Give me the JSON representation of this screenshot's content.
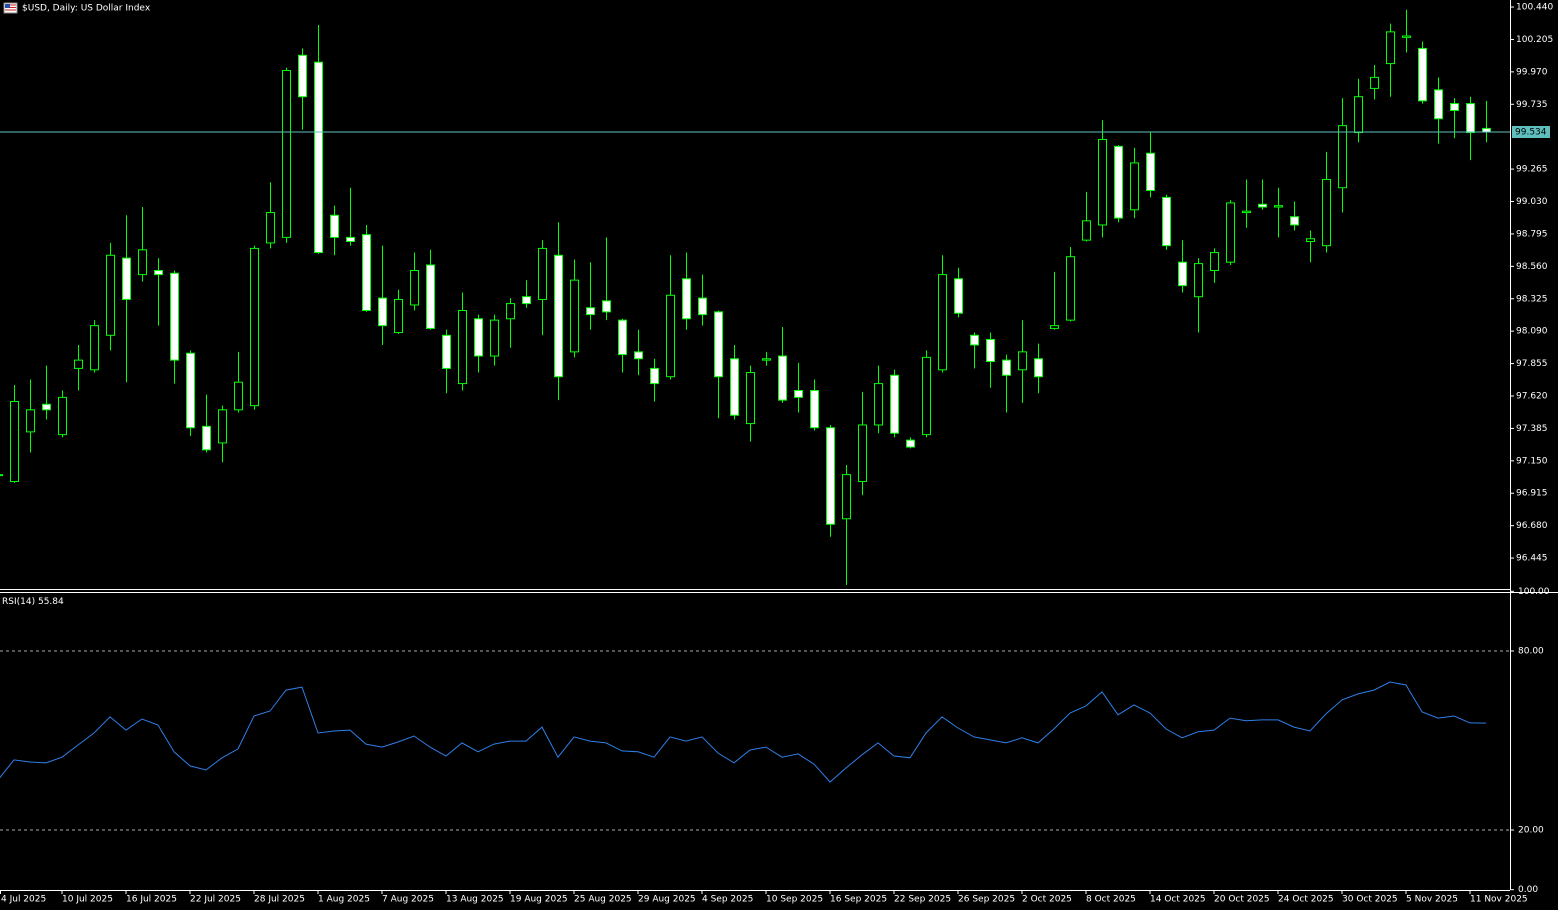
{
  "chart_data": [
    {
      "type": "candlestick",
      "title": "$USD, Daily:  US Dollar Index",
      "categories": [
        "4 Jul 2025",
        null,
        null,
        null,
        "10 Jul 2025",
        null,
        null,
        null,
        "16 Jul 2025",
        null,
        null,
        null,
        "22 Jul 2025",
        null,
        null,
        null,
        "28 Jul 2025",
        null,
        null,
        null,
        "1 Aug 2025",
        null,
        null,
        null,
        "7 Aug 2025",
        null,
        null,
        null,
        "13 Aug 2025",
        null,
        null,
        null,
        "19 Aug 2025",
        null,
        null,
        null,
        "25 Aug 2025",
        null,
        null,
        null,
        "29 Aug 2025",
        null,
        null,
        null,
        "4 Sep 2025",
        null,
        null,
        null,
        "10 Sep 2025",
        null,
        null,
        null,
        "16 Sep 2025",
        null,
        null,
        null,
        "22 Sep 2025",
        null,
        null,
        null,
        "26 Sep 2025",
        null,
        null,
        null,
        "2 Oct 2025",
        null,
        null,
        null,
        "8 Oct 2025",
        null,
        null,
        null,
        "14 Oct 2025",
        null,
        null,
        null,
        "20 Oct 2025",
        null,
        null,
        null,
        "24 Oct 2025",
        null,
        null,
        null,
        "30 Oct 2025",
        null,
        null,
        null,
        "5 Nov 2025",
        null,
        null,
        null,
        "11 Nov 2025",
        null
      ],
      "open": [
        97.05,
        97.0,
        97.36,
        97.56,
        97.34,
        97.82,
        97.81,
        98.06,
        98.62,
        98.5,
        98.53,
        98.51,
        97.93,
        97.4,
        97.28,
        97.52,
        97.55,
        98.73,
        98.77,
        100.09,
        100.04,
        98.93,
        98.77,
        98.79,
        98.33,
        98.08,
        98.28,
        98.57,
        98.06,
        97.71,
        98.18,
        97.91,
        98.18,
        98.34,
        98.32,
        98.64,
        97.94,
        98.26,
        98.31,
        98.17,
        97.94,
        97.82,
        97.76,
        98.47,
        98.33,
        98.23,
        97.89,
        97.42,
        97.88,
        97.91,
        97.66,
        97.66,
        97.39,
        96.73,
        97.0,
        97.41,
        97.77,
        97.3,
        97.34,
        97.81,
        98.47,
        98.06,
        98.03,
        97.88,
        97.81,
        97.89,
        98.11,
        98.17,
        98.75,
        98.86,
        99.43,
        98.97,
        99.38,
        99.06,
        98.59,
        98.34,
        98.53,
        98.59,
        98.95,
        99.01,
        98.99,
        98.92,
        98.74,
        98.71,
        99.13,
        99.53,
        99.85,
        100.03,
        100.22,
        100.14,
        99.84,
        99.74,
        99.74,
        99.56
      ],
      "high": [
        97.07,
        97.7,
        97.74,
        97.84,
        97.66,
        97.99,
        98.17,
        98.73,
        98.93,
        98.99,
        98.62,
        98.53,
        97.95,
        97.63,
        97.55,
        97.94,
        98.71,
        99.17,
        100.0,
        100.14,
        100.31,
        99.0,
        99.13,
        98.86,
        98.71,
        98.39,
        98.66,
        98.68,
        98.1,
        98.37,
        98.21,
        98.21,
        98.33,
        98.46,
        98.75,
        98.88,
        98.61,
        98.59,
        98.77,
        98.18,
        98.1,
        97.89,
        98.64,
        98.66,
        98.5,
        98.24,
        97.99,
        97.84,
        97.94,
        98.12,
        97.86,
        97.74,
        97.41,
        97.12,
        97.65,
        97.84,
        97.81,
        97.32,
        97.95,
        98.64,
        98.55,
        98.08,
        98.08,
        97.92,
        98.17,
        98.0,
        98.52,
        98.7,
        99.1,
        99.62,
        99.44,
        99.42,
        99.53,
        99.08,
        98.75,
        98.62,
        98.69,
        99.04,
        99.19,
        99.19,
        99.13,
        99.03,
        98.82,
        99.39,
        99.78,
        99.92,
        100.02,
        100.32,
        100.42,
        100.19,
        99.93,
        99.78,
        99.79,
        99.76
      ],
      "low": [
        97.03,
        96.99,
        97.21,
        97.45,
        97.32,
        97.66,
        97.79,
        97.95,
        97.72,
        98.45,
        98.13,
        97.71,
        97.33,
        97.21,
        97.14,
        97.5,
        97.52,
        98.69,
        98.73,
        99.55,
        98.65,
        98.64,
        98.71,
        98.23,
        97.99,
        98.07,
        98.24,
        98.1,
        97.64,
        97.66,
        97.79,
        97.84,
        97.97,
        98.26,
        98.06,
        97.59,
        97.9,
        98.1,
        98.17,
        97.79,
        97.77,
        97.58,
        97.74,
        98.1,
        98.13,
        97.46,
        97.45,
        97.29,
        97.84,
        97.57,
        97.5,
        97.37,
        96.6,
        96.25,
        96.9,
        97.35,
        97.32,
        97.24,
        97.32,
        97.79,
        98.19,
        97.82,
        97.68,
        97.5,
        97.57,
        97.64,
        98.1,
        98.16,
        98.74,
        98.77,
        98.88,
        98.91,
        99.06,
        98.68,
        98.37,
        98.08,
        98.44,
        98.57,
        98.84,
        98.97,
        98.77,
        98.82,
        98.59,
        98.66,
        98.95,
        99.46,
        99.77,
        99.79,
        100.11,
        99.74,
        99.45,
        99.49,
        99.33,
        99.46
      ],
      "close": [
        97.05,
        97.58,
        97.52,
        97.52,
        97.61,
        97.88,
        98.13,
        98.64,
        98.32,
        98.68,
        98.5,
        97.88,
        97.39,
        97.23,
        97.52,
        97.72,
        98.69,
        98.95,
        99.98,
        99.79,
        98.66,
        98.77,
        98.74,
        98.24,
        98.13,
        98.32,
        98.53,
        98.11,
        97.82,
        98.24,
        97.91,
        98.17,
        98.29,
        98.29,
        98.69,
        97.76,
        98.46,
        98.21,
        98.23,
        97.92,
        97.89,
        97.71,
        98.35,
        98.18,
        98.21,
        97.76,
        97.48,
        97.79,
        97.89,
        97.59,
        97.61,
        97.39,
        96.69,
        97.05,
        97.41,
        97.71,
        97.35,
        97.25,
        97.9,
        98.5,
        98.22,
        97.99,
        97.87,
        97.77,
        97.94,
        97.76,
        98.13,
        98.63,
        98.89,
        99.48,
        98.91,
        99.31,
        99.11,
        98.71,
        98.42,
        98.58,
        98.66,
        99.02,
        98.96,
        98.99,
        99.0,
        98.86,
        98.76,
        99.19,
        99.58,
        99.79,
        99.93,
        100.26,
        100.23,
        99.76,
        99.63,
        99.69,
        99.53,
        99.534
      ],
      "up_color": "#000000",
      "down_color": "#ffffff",
      "wick_color": "#00ff00",
      "price_line_color": "#5fbfbf",
      "ylim": [
        96.228,
        100.491
      ],
      "yticks": [
        {
          "value": 100.44,
          "label": "100.440"
        },
        {
          "value": 100.205,
          "label": "100.205"
        },
        {
          "value": 99.97,
          "label": "99.970"
        },
        {
          "value": 99.735,
          "label": "99.735"
        },
        {
          "value": 99.265,
          "label": "99.265"
        },
        {
          "value": 99.03,
          "label": "99.030"
        },
        {
          "value": 98.795,
          "label": "98.795"
        },
        {
          "value": 98.56,
          "label": "98.560"
        },
        {
          "value": 98.325,
          "label": "98.325"
        },
        {
          "value": 98.09,
          "label": "98.090"
        },
        {
          "value": 97.855,
          "label": "97.855"
        },
        {
          "value": 97.62,
          "label": "97.620"
        },
        {
          "value": 97.385,
          "label": "97.385"
        },
        {
          "value": 97.15,
          "label": "97.150"
        },
        {
          "value": 96.915,
          "label": "96.915"
        },
        {
          "value": 96.68,
          "label": "96.680"
        },
        {
          "value": 96.445,
          "label": "96.445"
        }
      ]
    },
    {
      "type": "line",
      "title": "RSI(14)",
      "series": [
        {
          "name": "RSI(14)",
          "color": "#2f7fe8",
          "values": [
            36.8,
            43.5,
            42.8,
            42.5,
            44.4,
            48.5,
            52.5,
            57.9,
            53.5,
            57.2,
            55.2,
            46.2,
            41.5,
            40.1,
            44.2,
            47.2,
            58.2,
            59.9,
            66.9,
            67.9,
            52.5,
            53.2,
            53.5,
            48.8,
            47.8,
            49.5,
            51.5,
            47.8,
            44.8,
            49.2,
            46.2,
            48.8,
            49.8,
            49.8,
            54.5,
            44.4,
            51.2,
            49.8,
            49.2,
            46.5,
            46.2,
            44.4,
            51.2,
            49.8,
            51.2,
            45.8,
            42.5,
            46.8,
            47.8,
            44.4,
            45.5,
            42.1,
            36.1,
            40.8,
            45.2,
            49.2,
            44.8,
            44.2,
            52.5,
            57.9,
            54.2,
            51.2,
            50.2,
            49.2,
            50.9,
            49.2,
            53.9,
            59.2,
            61.6,
            66.3,
            58.6,
            61.9,
            59.2,
            53.9,
            50.9,
            52.9,
            53.5,
            57.5,
            56.6,
            56.9,
            56.9,
            54.5,
            53.2,
            58.9,
            63.6,
            65.6,
            66.9,
            69.6,
            68.6,
            59.6,
            57.5,
            58.2,
            55.9,
            55.84
          ]
        }
      ],
      "ylim": [
        0,
        100
      ],
      "yticks": [
        {
          "value": 100,
          "label": "100.00"
        },
        {
          "value": 80,
          "label": "80.00"
        },
        {
          "value": 20,
          "label": "20.00"
        },
        {
          "value": 0,
          "label": "0.00"
        }
      ]
    }
  ]
}
